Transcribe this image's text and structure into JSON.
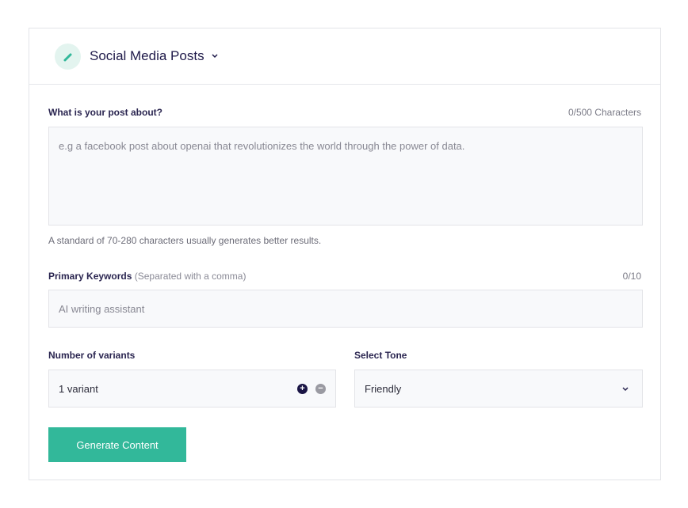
{
  "header": {
    "title": "Social Media Posts",
    "icon": "pencil-icon",
    "accent": "#32b89a"
  },
  "post": {
    "label": "What is your post about?",
    "counter": "0/500 Characters",
    "placeholder": "e.g a facebook post about openai that revolutionizes the world through the power of data.",
    "hint": "A standard of 70-280 characters usually generates better results."
  },
  "keywords": {
    "label": "Primary Keywords",
    "sublabel": "(Separated with a comma)",
    "counter": "0/10",
    "placeholder": "AI writing assistant"
  },
  "variants": {
    "label": "Number of variants",
    "value": "1 variant"
  },
  "tone": {
    "label": "Select Tone",
    "value": "Friendly"
  },
  "generate_label": "Generate Content"
}
